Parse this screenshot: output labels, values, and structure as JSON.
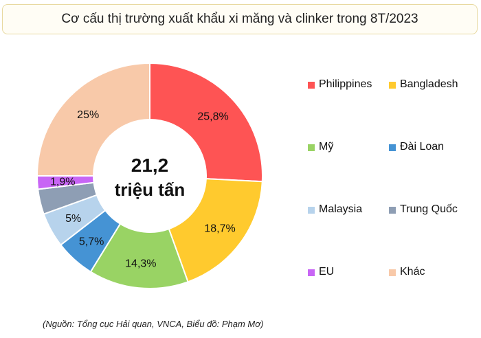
{
  "title": "Cơ cấu thị trường xuất khẩu xi măng và clinker trong 8T/2023",
  "source": "(Nguồn: Tổng cục Hải quan, VNCA, Biểu đồ: Phạm Mơ)",
  "chart_data": {
    "type": "pie",
    "variant": "donut",
    "center_label": [
      "21,2",
      "triệu tấn"
    ],
    "legend_position": "right",
    "series": [
      {
        "name": "Philippines",
        "value": 25.8,
        "label": "25,8%",
        "color": "#fe5454"
      },
      {
        "name": "Bangladesh",
        "value": 18.7,
        "label": "18,7%",
        "color": "#ffca2e"
      },
      {
        "name": "Mỹ",
        "value": 14.3,
        "label": "14,3%",
        "color": "#99d364"
      },
      {
        "name": "Đài Loan",
        "value": 5.7,
        "label": "5,7%",
        "color": "#4593d4"
      },
      {
        "name": "Malaysia",
        "value": 5,
        "label": "5%",
        "color": "#b7d3ec"
      },
      {
        "name": "Trung Quốc",
        "value": 3.6,
        "label": "",
        "color": "#8e9eb4"
      },
      {
        "name": "EU",
        "value": 1.9,
        "label": "1,9%",
        "color": "#c865f5"
      },
      {
        "name": "Khác",
        "value": 25,
        "label": "25%",
        "color": "#f8c9a9"
      }
    ]
  }
}
